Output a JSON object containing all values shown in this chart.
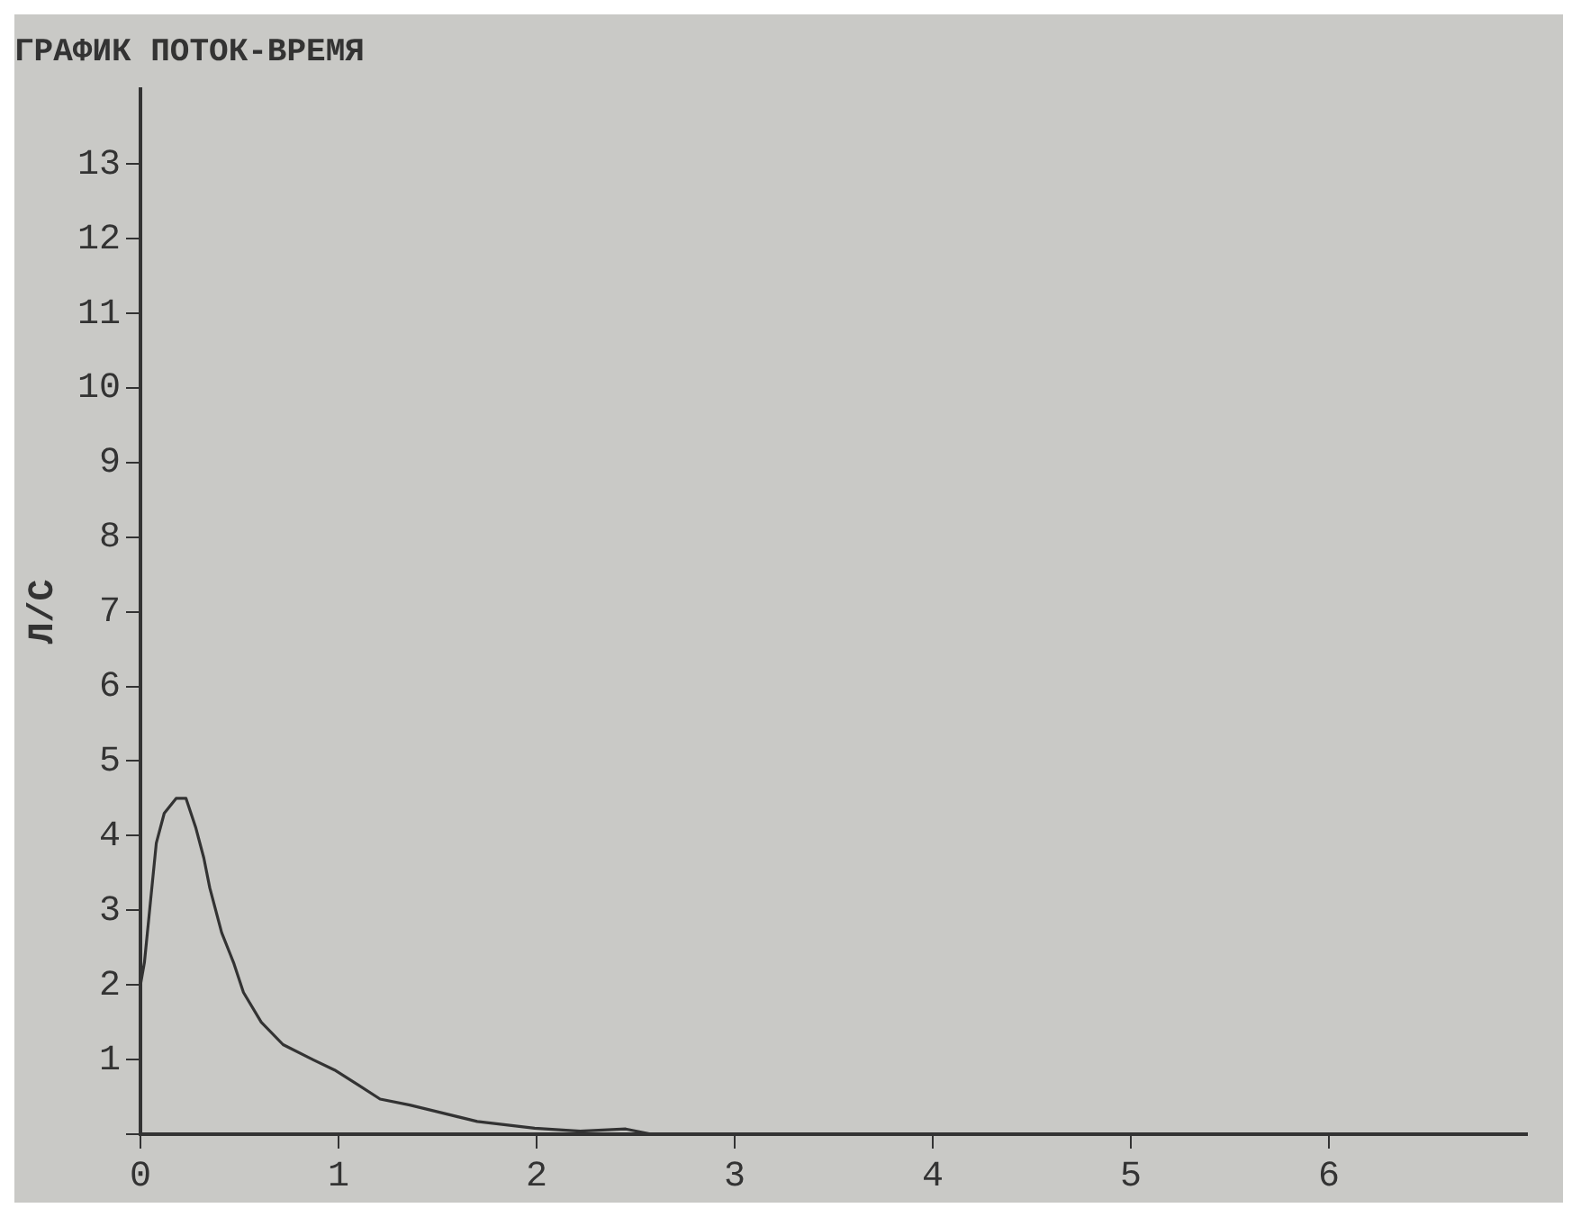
{
  "chart_data": {
    "type": "line",
    "title": "ГРАФИК ПОТОК-ВРЕМЯ",
    "ylabel": "Л/С",
    "x": [
      0.0,
      0.02,
      0.05,
      0.08,
      0.12,
      0.18,
      0.23,
      0.28,
      0.32,
      0.35,
      0.41,
      0.47,
      0.52,
      0.61,
      0.72,
      0.87,
      0.98,
      1.1,
      1.21,
      1.36,
      1.5,
      1.7,
      1.99,
      2.22,
      2.45,
      2.58
    ],
    "series": [
      {
        "color": "#333333",
        "values": [
          2.0,
          2.3,
          3.1,
          3.9,
          4.3,
          4.5,
          4.5,
          4.1,
          3.7,
          3.3,
          2.7,
          2.3,
          1.9,
          1.5,
          1.2,
          1.0,
          0.86,
          0.66,
          0.47,
          0.39,
          0.3,
          0.17,
          0.08,
          0.04,
          0.07,
          0.0
        ]
      }
    ],
    "xlim": [
      0,
      7
    ],
    "xticks": [
      0,
      1,
      2,
      3,
      4,
      5,
      6
    ],
    "ylim": [
      0,
      14
    ],
    "yticks": [
      {
        "value": 0,
        "label": null
      },
      1,
      2,
      3,
      4,
      5,
      6,
      7,
      8,
      9,
      10,
      11,
      12,
      13
    ],
    "grid": false,
    "legend": false,
    "marker": "none",
    "line_style": "solid"
  }
}
